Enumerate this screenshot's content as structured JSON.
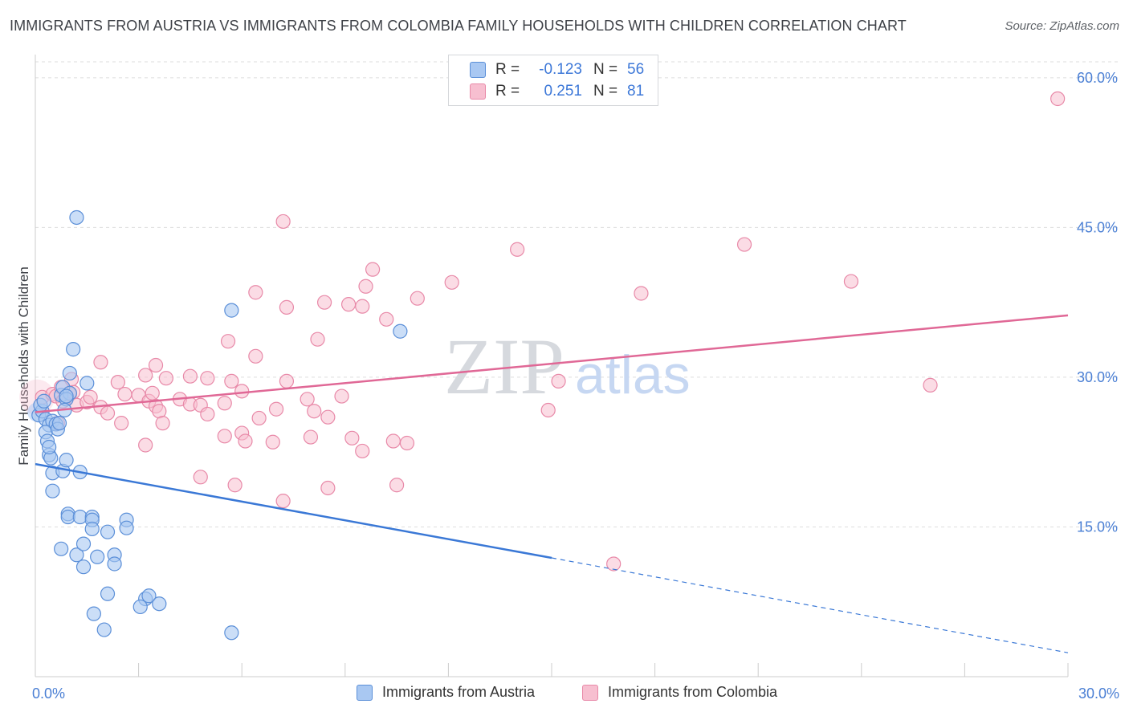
{
  "title": "IMMIGRANTS FROM AUSTRIA VS IMMIGRANTS FROM COLOMBIA FAMILY HOUSEHOLDS WITH CHILDREN CORRELATION CHART",
  "source": "Source: ZipAtlas.com",
  "watermark": {
    "zip": "ZIP",
    "atlas": "atlas"
  },
  "legend": {
    "austria": {
      "r_label": "R =",
      "r_value": "-0.123",
      "n_label": "N =",
      "n_value": "56"
    },
    "colombia": {
      "r_label": "R =",
      "r_value": "0.251",
      "n_label": "N =",
      "n_value": "81"
    }
  },
  "bottom_legend": {
    "austria": "Immigrants from Austria",
    "colombia": "Immigrants from Colombia"
  },
  "colors": {
    "austria_fill": "#a9c8f2",
    "austria_stroke": "#5b8fd8",
    "austria_line": "#3a78d6",
    "colombia_fill": "#f7bfd0",
    "colombia_stroke": "#e889a8",
    "colombia_line": "#e06896",
    "tick_label": "#4a7fd4",
    "grid": "#dddddd"
  },
  "chart_data": {
    "type": "scatter",
    "title": "IMMIGRANTS FROM AUSTRIA VS IMMIGRANTS FROM COLOMBIA FAMILY HOUSEHOLDS WITH CHILDREN CORRELATION CHART",
    "xlabel": "",
    "ylabel": "Family Households with Children",
    "xlim": [
      0,
      30
    ],
    "ylim": [
      0,
      62
    ],
    "x_tick_labels": [
      "0.0%",
      "30.0%"
    ],
    "y_ticks": [
      15,
      30,
      45,
      60
    ],
    "y_tick_labels": [
      "15.0%",
      "30.0%",
      "45.0%",
      "60.0%"
    ],
    "series": [
      {
        "name": "Immigrants from Austria",
        "r": -0.123,
        "n": 56,
        "trend": {
          "x0": 0,
          "y0": 21.3,
          "x1": 15.0,
          "y1": 11.9,
          "dashed_to_x": 30,
          "dashed_to_y": 2.4
        },
        "points": [
          [
            0.1,
            26.2
          ],
          [
            0.2,
            26.6
          ],
          [
            0.15,
            27.2
          ],
          [
            0.3,
            25.8
          ],
          [
            0.25,
            27.6
          ],
          [
            0.4,
            25.2
          ],
          [
            0.5,
            25.6
          ],
          [
            0.3,
            24.5
          ],
          [
            0.35,
            23.6
          ],
          [
            0.4,
            22.2
          ],
          [
            0.45,
            21.9
          ],
          [
            0.6,
            25.3
          ],
          [
            0.65,
            24.8
          ],
          [
            0.7,
            25.4
          ],
          [
            0.75,
            28.2
          ],
          [
            0.8,
            29.0
          ],
          [
            1.0,
            28.4
          ],
          [
            0.9,
            27.8
          ],
          [
            0.85,
            26.7
          ],
          [
            1.5,
            29.4
          ],
          [
            1.0,
            30.4
          ],
          [
            0.4,
            23.0
          ],
          [
            0.5,
            20.4
          ],
          [
            0.8,
            20.6
          ],
          [
            1.3,
            20.5
          ],
          [
            0.9,
            21.7
          ],
          [
            0.5,
            18.6
          ],
          [
            0.95,
            16.3
          ],
          [
            0.95,
            16.0
          ],
          [
            1.3,
            16.0
          ],
          [
            1.65,
            16.0
          ],
          [
            1.65,
            15.7
          ],
          [
            2.65,
            15.7
          ],
          [
            1.65,
            14.8
          ],
          [
            2.1,
            14.5
          ],
          [
            2.65,
            14.9
          ],
          [
            0.75,
            12.8
          ],
          [
            1.2,
            12.2
          ],
          [
            1.8,
            12.0
          ],
          [
            2.3,
            12.2
          ],
          [
            1.4,
            13.3
          ],
          [
            1.4,
            11.0
          ],
          [
            2.3,
            11.3
          ],
          [
            2.1,
            8.3
          ],
          [
            3.2,
            7.8
          ],
          [
            3.3,
            8.1
          ],
          [
            3.6,
            7.3
          ],
          [
            3.05,
            7.0
          ],
          [
            1.7,
            6.3
          ],
          [
            2.0,
            4.7
          ],
          [
            5.7,
            4.4
          ],
          [
            1.2,
            46.0
          ],
          [
            1.1,
            32.8
          ],
          [
            5.7,
            36.7
          ],
          [
            10.6,
            34.6
          ],
          [
            0.9,
            28.1
          ]
        ]
      },
      {
        "name": "Immigrants from Colombia",
        "r": 0.251,
        "n": 81,
        "trend": {
          "x0": 0,
          "y0": 26.5,
          "x1": 30,
          "y1": 36.2
        },
        "points": [
          [
            0.2,
            28.0
          ],
          [
            0.5,
            28.3
          ],
          [
            0.6,
            28.1
          ],
          [
            0.8,
            27.6
          ],
          [
            1.0,
            28.3
          ],
          [
            1.1,
            28.5
          ],
          [
            0.65,
            25.4
          ],
          [
            1.2,
            27.2
          ],
          [
            1.5,
            27.5
          ],
          [
            1.6,
            28.0
          ],
          [
            0.75,
            29.0
          ],
          [
            1.05,
            29.8
          ],
          [
            1.9,
            27.0
          ],
          [
            2.1,
            26.4
          ],
          [
            2.4,
            29.5
          ],
          [
            2.6,
            28.3
          ],
          [
            3.0,
            28.2
          ],
          [
            3.3,
            27.6
          ],
          [
            3.5,
            27.1
          ],
          [
            3.6,
            26.6
          ],
          [
            3.7,
            25.4
          ],
          [
            3.4,
            28.4
          ],
          [
            3.8,
            29.9
          ],
          [
            4.2,
            27.8
          ],
          [
            4.5,
            27.3
          ],
          [
            4.8,
            27.2
          ],
          [
            5.0,
            26.3
          ],
          [
            5.5,
            27.4
          ],
          [
            6.0,
            28.6
          ],
          [
            6.5,
            25.9
          ],
          [
            7.0,
            26.8
          ],
          [
            7.3,
            29.6
          ],
          [
            7.9,
            27.8
          ],
          [
            8.1,
            26.6
          ],
          [
            8.5,
            26.0
          ],
          [
            8.9,
            28.1
          ],
          [
            1.9,
            31.5
          ],
          [
            3.5,
            31.2
          ],
          [
            3.2,
            30.2
          ],
          [
            4.5,
            30.1
          ],
          [
            5.0,
            29.9
          ],
          [
            5.7,
            29.6
          ],
          [
            6.4,
            32.1
          ],
          [
            5.6,
            33.6
          ],
          [
            8.2,
            33.8
          ],
          [
            2.5,
            25.4
          ],
          [
            3.2,
            23.2
          ],
          [
            6.0,
            24.4
          ],
          [
            6.9,
            23.5
          ],
          [
            8.0,
            24.0
          ],
          [
            9.2,
            23.9
          ],
          [
            9.5,
            22.6
          ],
          [
            10.4,
            23.6
          ],
          [
            10.8,
            23.4
          ],
          [
            10.5,
            19.2
          ],
          [
            8.5,
            18.9
          ],
          [
            7.2,
            17.6
          ],
          [
            5.8,
            19.2
          ],
          [
            4.8,
            20.0
          ],
          [
            5.5,
            24.1
          ],
          [
            6.1,
            23.6
          ],
          [
            6.4,
            38.5
          ],
          [
            7.3,
            37.0
          ],
          [
            8.4,
            37.5
          ],
          [
            9.1,
            37.3
          ],
          [
            9.5,
            37.1
          ],
          [
            9.6,
            39.1
          ],
          [
            10.2,
            35.8
          ],
          [
            11.1,
            37.9
          ],
          [
            12.1,
            39.5
          ],
          [
            9.8,
            40.8
          ],
          [
            7.2,
            45.6
          ],
          [
            14.0,
            42.8
          ],
          [
            14.9,
            26.7
          ],
          [
            15.2,
            29.6
          ],
          [
            16.8,
            11.3
          ],
          [
            17.6,
            38.4
          ],
          [
            20.6,
            43.3
          ],
          [
            23.7,
            39.6
          ],
          [
            26.0,
            29.2
          ],
          [
            29.7,
            57.9
          ]
        ]
      }
    ]
  }
}
